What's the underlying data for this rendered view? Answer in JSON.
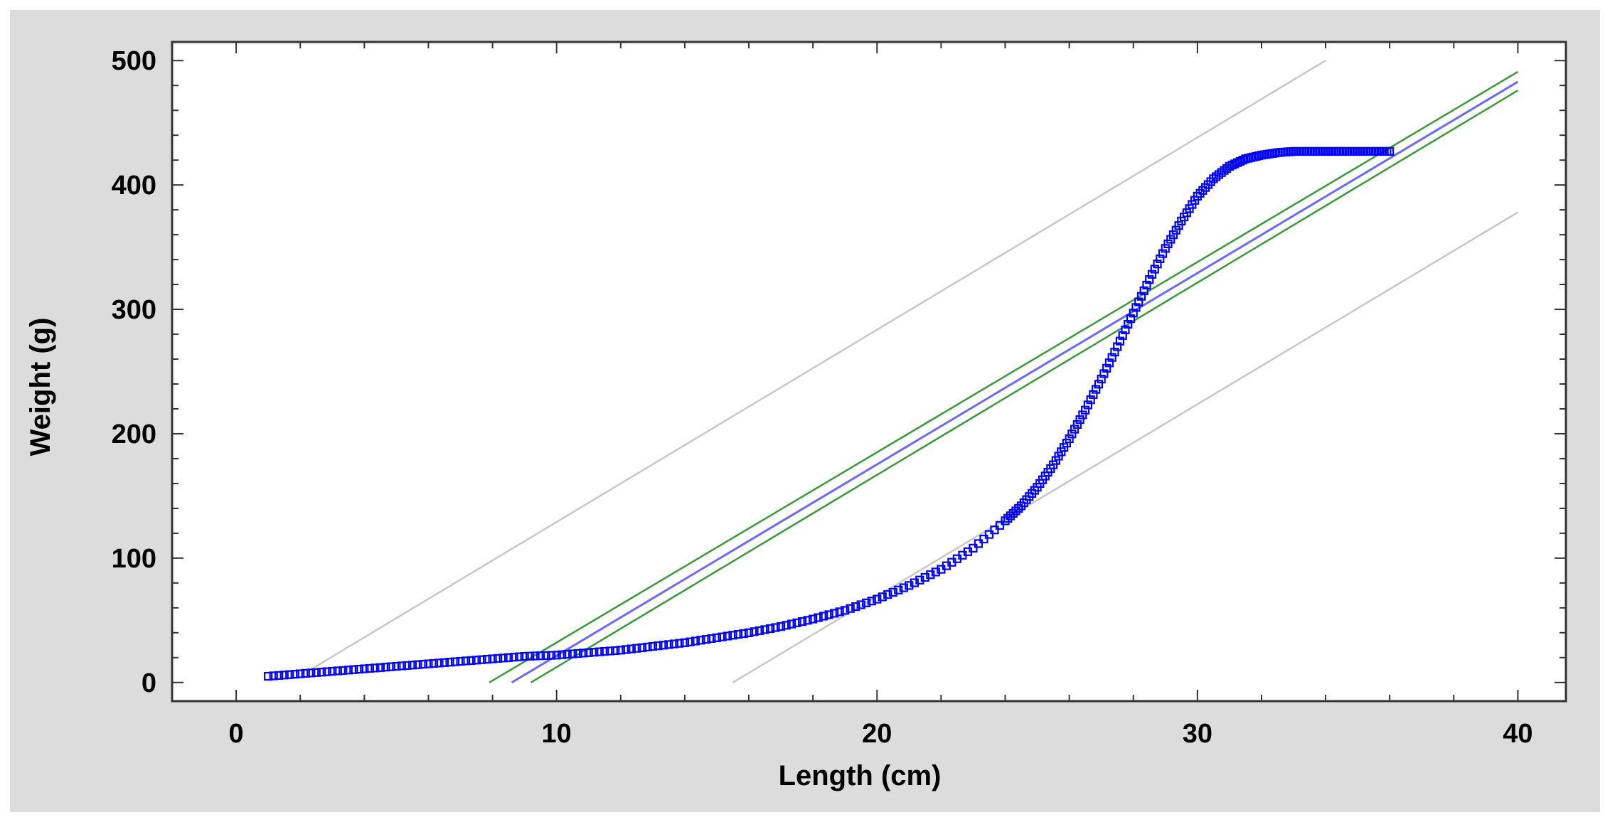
{
  "chart_data": {
    "type": "scatter",
    "title": "",
    "xlabel": "Length (cm)",
    "ylabel": "Weight (g)",
    "xlim": [
      -2,
      41.5
    ],
    "ylim": [
      -15,
      515
    ],
    "xticks": [
      0,
      10,
      20,
      30,
      40
    ],
    "yticks": [
      0,
      100,
      200,
      300,
      400,
      500
    ],
    "xtick_labels": [
      "0",
      "10",
      "20",
      "30",
      "40"
    ],
    "ytick_labels": [
      "0",
      "100",
      "200",
      "300",
      "400",
      "500"
    ],
    "grid": false,
    "legend": "none",
    "series": [
      {
        "kind": "points",
        "marker": "open-square",
        "color": "#0000ff",
        "x": [
          1,
          2,
          3,
          4,
          5,
          6,
          7,
          8,
          9,
          10,
          11,
          12,
          13,
          14,
          15,
          16,
          17,
          18,
          19,
          20,
          21,
          22,
          23,
          24,
          24.5,
          25,
          25.5,
          26,
          26.5,
          27,
          27.5,
          28,
          28.5,
          29,
          29.5,
          30,
          30.5,
          31,
          31.5,
          32,
          32.5,
          33,
          33.5,
          34,
          34.5,
          35,
          35.5,
          36
        ],
        "y": [
          5,
          7,
          9,
          11,
          13,
          15,
          17,
          19,
          21,
          22,
          24,
          26,
          29,
          32,
          36,
          40,
          45,
          51,
          58,
          67,
          78,
          91,
          108,
          130,
          142,
          157,
          175,
          196,
          219,
          244,
          270,
          297,
          324,
          349,
          371,
          391,
          405,
          415,
          421,
          424,
          426,
          427,
          427,
          427,
          427,
          427,
          427,
          427
        ]
      },
      {
        "kind": "line",
        "role": "fit",
        "color": "#6a6aff",
        "x": [
          8.6,
          40
        ],
        "y": [
          0,
          483
        ]
      },
      {
        "kind": "line",
        "role": "confidence-upper",
        "color": "#3a9a3a",
        "x": [
          7.9,
          40
        ],
        "y": [
          0,
          491
        ]
      },
      {
        "kind": "line",
        "role": "confidence-lower",
        "color": "#3a9a3a",
        "x": [
          9.2,
          40
        ],
        "y": [
          0,
          476
        ]
      },
      {
        "kind": "line",
        "role": "prediction-upper",
        "color": "#c8c8c8",
        "x": [
          2.3,
          34
        ],
        "y": [
          10,
          500
        ]
      },
      {
        "kind": "line",
        "role": "prediction-lower",
        "color": "#c8c8c8",
        "x": [
          15.5,
          40
        ],
        "y": [
          0,
          378
        ]
      }
    ]
  }
}
